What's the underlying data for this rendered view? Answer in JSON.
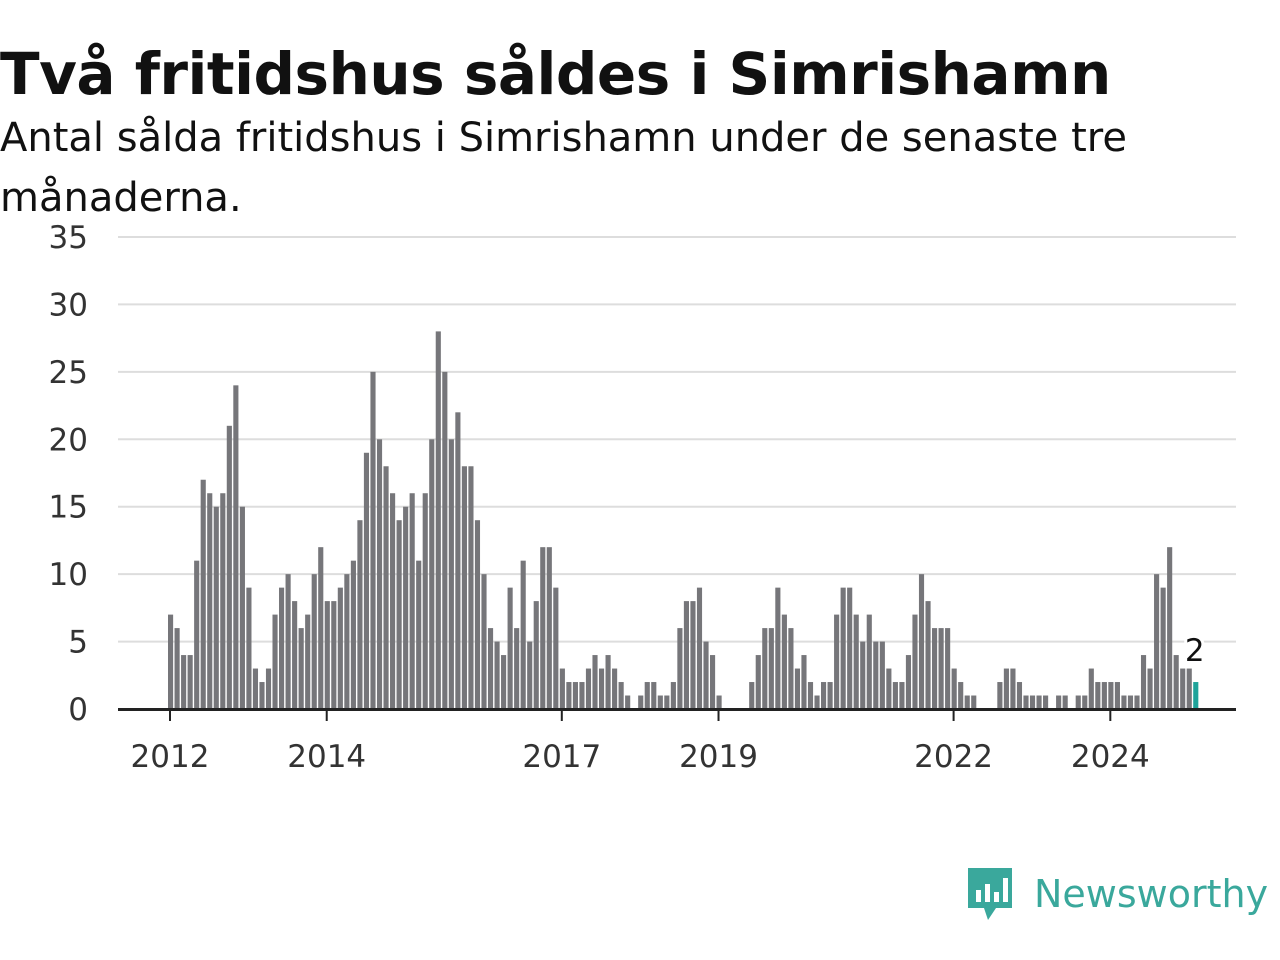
{
  "title": "Två fritidshus såldes i Simrishamn",
  "subtitle": "Antal sålda fritidshus i Simrishamn under de senaste tre månaderna.",
  "brand": {
    "name": "Newsworthy",
    "color": "#3aa89c"
  },
  "colors": {
    "bar": "#76767a",
    "highlight": "#1fa39a",
    "grid": "#dddddd",
    "axis": "#222222"
  },
  "chart_data": {
    "type": "bar",
    "y_ticks": [
      "0",
      "5",
      "10",
      "15",
      "20",
      "25",
      "30",
      "35"
    ],
    "ylim": [
      0,
      35
    ],
    "x_ticks": [
      {
        "label": "2012",
        "index": 8
      },
      {
        "label": "2014",
        "index": 32
      },
      {
        "label": "2017",
        "index": 68
      },
      {
        "label": "2019",
        "index": 92
      },
      {
        "label": "2022",
        "index": 128
      },
      {
        "label": "2024",
        "index": 152
      }
    ],
    "first_index": 8,
    "values": [
      7,
      6,
      4,
      4,
      11,
      17,
      16,
      15,
      16,
      21,
      24,
      15,
      9,
      3,
      2,
      3,
      7,
      9,
      10,
      8,
      6,
      7,
      10,
      12,
      8,
      8,
      9,
      10,
      11,
      14,
      19,
      25,
      20,
      18,
      16,
      14,
      15,
      16,
      11,
      16,
      20,
      28,
      25,
      20,
      22,
      18,
      18,
      14,
      10,
      6,
      5,
      4,
      9,
      6,
      11,
      5,
      8,
      12,
      12,
      9,
      3,
      2,
      2,
      2,
      3,
      4,
      3,
      4,
      3,
      2,
      1,
      0,
      1,
      2,
      2,
      1,
      1,
      2,
      6,
      8,
      8,
      9,
      5,
      4,
      1,
      0,
      0,
      0,
      0,
      2,
      4,
      6,
      6,
      9,
      7,
      6,
      3,
      4,
      2,
      1,
      2,
      2,
      7,
      9,
      9,
      7,
      5,
      7,
      5,
      5,
      3,
      2,
      2,
      4,
      7,
      10,
      8,
      6,
      6,
      6,
      3,
      2,
      1,
      1,
      0,
      0,
      0,
      2,
      3,
      3,
      2,
      1,
      1,
      1,
      1,
      0,
      1,
      1,
      0,
      1,
      1,
      3,
      2,
      2,
      2,
      2,
      1,
      1,
      1,
      4,
      3,
      10,
      9,
      12,
      4,
      3,
      3,
      2
    ],
    "highlight_last": true,
    "last_value_label": "2",
    "grid": true
  }
}
